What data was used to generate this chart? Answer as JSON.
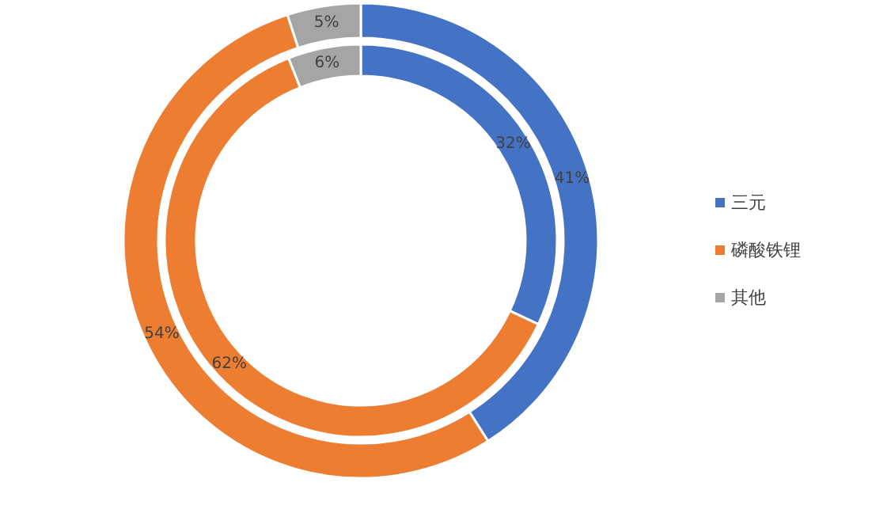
{
  "chart_data": {
    "type": "donut",
    "categories": [
      "三元",
      "磷酸铁锂",
      "其他"
    ],
    "colors": [
      "#4472c4",
      "#ed7d31",
      "#a5a5a5"
    ],
    "series": [
      {
        "values": [
          41,
          54,
          5
        ],
        "value_labels": [
          "41%",
          "54%",
          "5%"
        ]
      },
      {
        "values": [
          32,
          62,
          6
        ],
        "value_labels": [
          "32%",
          "62%",
          "6%"
        ]
      }
    ],
    "legend": "right"
  }
}
